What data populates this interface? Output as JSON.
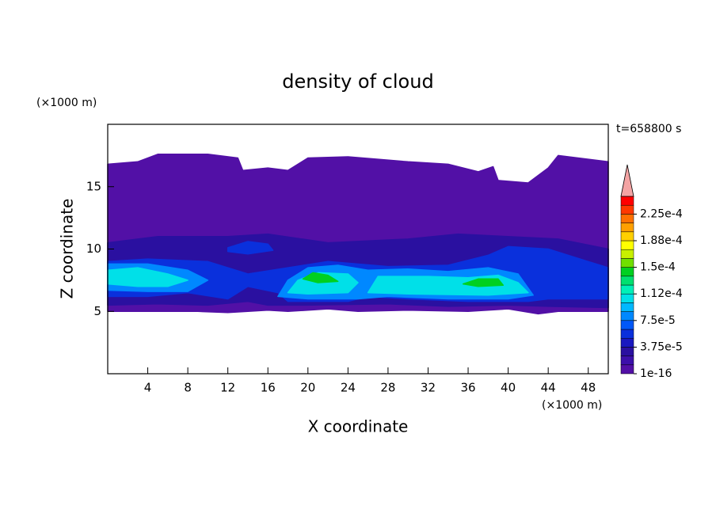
{
  "chart_data": {
    "type": "contour",
    "title": "density of cloud",
    "x_label": "X coordinate",
    "y_label": "Z coordinate",
    "x_unit": "(×1000 m)",
    "y_unit": "(×1000 m)",
    "annotation": "t=658800 s",
    "xlim": [
      0,
      50
    ],
    "ylim": [
      0,
      20
    ],
    "xticks": [
      4,
      8,
      12,
      16,
      20,
      24,
      28,
      32,
      36,
      40,
      44,
      48
    ],
    "yticks": [
      5,
      10,
      15
    ],
    "levels": [
      1e-16,
      1.25e-05,
      2.5e-05,
      3.75e-05,
      5e-05,
      6.25e-05,
      7.5e-05,
      8.75e-05,
      0.0001,
      0.0001125,
      0.000125,
      0.0001375,
      0.00015,
      0.0001625,
      0.000175,
      0.0001875,
      0.0002,
      0.0002125,
      0.000225,
      0.0002375,
      0.00025
    ],
    "colors": [
      "#5210a6",
      "#3c10aa",
      "#2a10a0",
      "#1a18c0",
      "#0a30dc",
      "#0058f8",
      "#0088ff",
      "#00b8ff",
      "#00e0e8",
      "#00f0b8",
      "#00e070",
      "#00d020",
      "#70e000",
      "#c8f000",
      "#ffff00",
      "#ffd000",
      "#ffa000",
      "#ff7000",
      "#ff3800",
      "#ff0000"
    ],
    "extend_color": "#f4a4a4",
    "colorbar_ticks": [
      {
        "value": 1e-16,
        "label": "1e-16"
      },
      {
        "value": 3.75e-05,
        "label": "3.75e-5"
      },
      {
        "value": 7.5e-05,
        "label": "7.5e-5"
      },
      {
        "value": 0.0001125,
        "label": "1.12e-4"
      },
      {
        "value": 0.00015,
        "label": "1.5e-4"
      },
      {
        "value": 0.0001875,
        "label": "1.88e-4"
      },
      {
        "value": 0.000225,
        "label": "2.25e-4"
      }
    ],
    "regions": [
      {
        "value": 1e-16,
        "x": [
          0,
          0,
          3,
          5,
          10,
          13,
          13.5,
          16,
          18,
          20,
          24,
          27,
          30,
          34,
          37,
          38.5,
          39,
          42,
          44,
          45,
          50,
          50,
          45,
          43,
          40,
          36,
          30,
          25,
          22,
          18,
          16,
          12,
          9,
          4
        ],
        "z": [
          5,
          16.8,
          17,
          17.6,
          17.6,
          17.3,
          16.3,
          16.5,
          16.3,
          17.3,
          17.4,
          17.2,
          17,
          16.8,
          16.2,
          16.6,
          15.5,
          15.3,
          16.5,
          17.5,
          17,
          5,
          5,
          4.8,
          5.2,
          5,
          5.1,
          5,
          5.2,
          5,
          5.1,
          4.9,
          5,
          5
        ]
      },
      {
        "value": 2.5e-05,
        "x": [
          0,
          0,
          5,
          12,
          16,
          22,
          30,
          35,
          40,
          45,
          50,
          50,
          44,
          40,
          34,
          28,
          20,
          16,
          14,
          10,
          5
        ],
        "z": [
          5.5,
          10.5,
          11,
          11,
          11.2,
          10.5,
          10.8,
          11.2,
          11,
          10.8,
          10,
          5.3,
          5.4,
          5.5,
          5.4,
          5.6,
          5.5,
          5.5,
          5.8,
          5.5,
          5.6
        ]
      },
      {
        "value": 5e-05,
        "x": [
          0,
          0,
          4,
          10,
          14,
          18,
          22,
          28,
          34,
          38,
          40,
          44,
          48,
          50,
          50,
          44,
          42,
          36,
          30,
          26,
          24,
          18,
          17,
          14,
          12,
          8,
          4
        ],
        "z": [
          6.2,
          9,
          9.2,
          9,
          8,
          8.5,
          9,
          8.6,
          8.7,
          9.5,
          10.2,
          10,
          9,
          8.5,
          6,
          6,
          5.8,
          5.8,
          6,
          6.2,
          5.8,
          5.8,
          6.5,
          7,
          6,
          6.5,
          6.2
        ]
      },
      {
        "value": 5e-05,
        "x": [
          12,
          14,
          16,
          16.5,
          14,
          12
        ],
        "z": [
          10.1,
          10.6,
          10.4,
          9.9,
          9.6,
          9.8
        ]
      },
      {
        "value": 7.5e-05,
        "x": [
          0,
          0,
          4,
          8,
          10,
          8,
          4
        ],
        "z": [
          6.7,
          8.8,
          8.8,
          8.3,
          7.5,
          6.6,
          6.6
        ]
      },
      {
        "value": 7.5e-05,
        "x": [
          17,
          18,
          20,
          23,
          26,
          30,
          34,
          38,
          41,
          42.5,
          40,
          34,
          28,
          25,
          20
        ],
        "z": [
          6.2,
          7.5,
          8.5,
          8.7,
          8.3,
          8.4,
          8.2,
          8.5,
          8,
          6.3,
          6,
          6,
          6.2,
          6,
          6
        ]
      },
      {
        "value": 0.0001,
        "x": [
          0,
          0,
          3,
          6,
          8,
          6,
          3
        ],
        "z": [
          7.2,
          8.3,
          8.5,
          8,
          7.5,
          7,
          7
        ]
      },
      {
        "value": 0.0001,
        "x": [
          18,
          19,
          21,
          24,
          25,
          24,
          20
        ],
        "z": [
          6.5,
          7.5,
          8.1,
          8,
          7.3,
          6.5,
          6.4
        ]
      },
      {
        "value": 0.0001,
        "x": [
          26,
          27,
          32,
          36,
          39,
          41,
          42,
          38,
          30
        ],
        "z": [
          6.5,
          7.8,
          7.8,
          7.7,
          7.9,
          7.3,
          6.5,
          6.3,
          6.4
        ]
      },
      {
        "value": 0.0001375,
        "x": [
          19.5,
          20.5,
          22,
          23,
          21
        ],
        "z": [
          7.6,
          8.1,
          7.9,
          7.4,
          7.3
        ]
      },
      {
        "value": 0.0001375,
        "x": [
          35.5,
          37,
          39,
          39.5,
          37
        ],
        "z": [
          7.2,
          7.6,
          7.6,
          7.1,
          7
        ]
      }
    ]
  }
}
